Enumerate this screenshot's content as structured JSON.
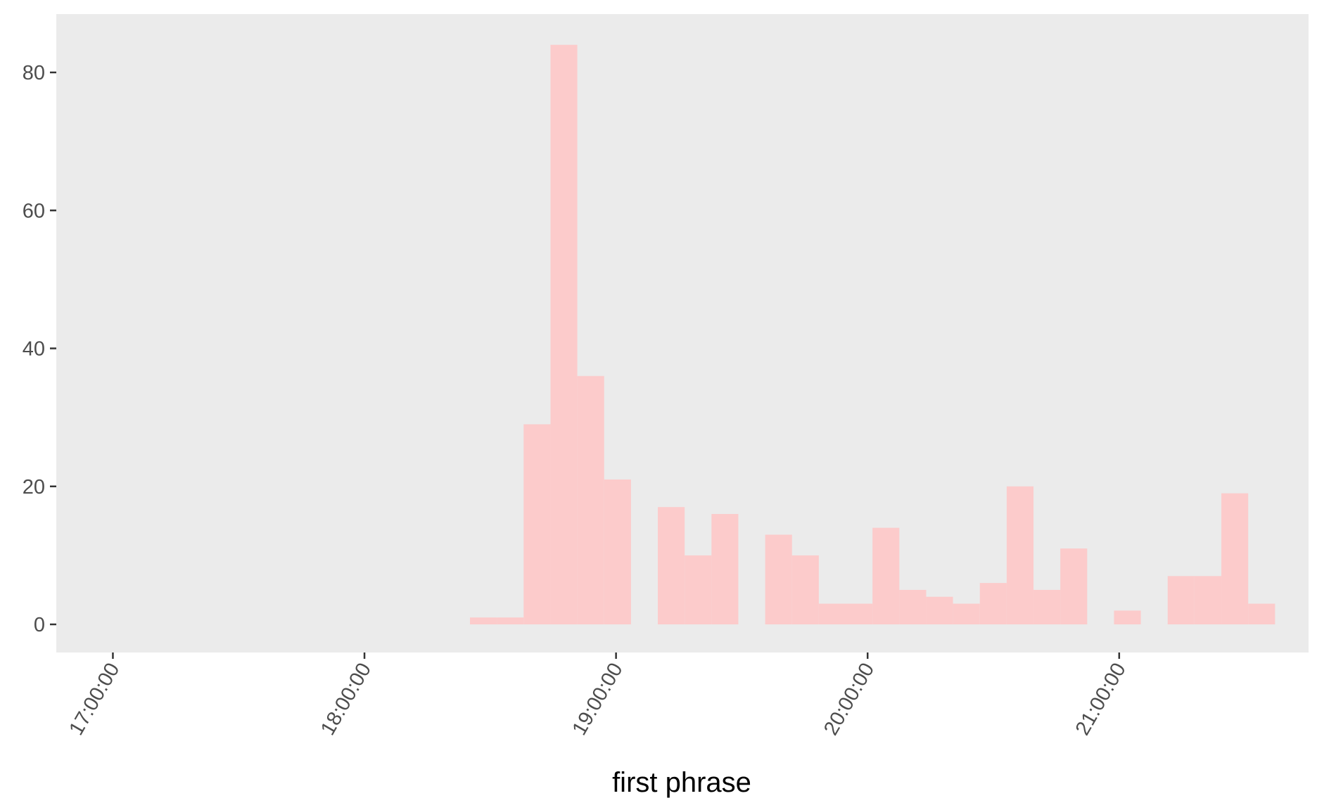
{
  "chart_data": {
    "type": "bar",
    "xlabel": "first phrase",
    "ylabel": "",
    "title": "",
    "x_ticks": [
      "17:00:00",
      "18:00:00",
      "19:00:00",
      "20:00:00",
      "21:00:00"
    ],
    "y_ticks": [
      "0",
      "20",
      "40",
      "60",
      "80"
    ],
    "ylim": [
      0,
      88
    ],
    "xlim": [
      "16:46:30",
      "21:45:10"
    ],
    "grid": false,
    "bin_width_minutes": 6.4,
    "bars": [
      {
        "start": "18:25:10",
        "end": "18:31:34",
        "count": 1
      },
      {
        "start": "18:31:34",
        "end": "18:37:58",
        "count": 1
      },
      {
        "start": "18:37:58",
        "end": "18:44:22",
        "count": 29
      },
      {
        "start": "18:44:22",
        "end": "18:50:46",
        "count": 84
      },
      {
        "start": "18:50:46",
        "end": "18:57:10",
        "count": 36
      },
      {
        "start": "18:57:10",
        "end": "19:03:34",
        "count": 21
      },
      {
        "start": "19:09:58",
        "end": "19:16:22",
        "count": 17
      },
      {
        "start": "19:16:22",
        "end": "19:22:46",
        "count": 10
      },
      {
        "start": "19:22:46",
        "end": "19:29:10",
        "count": 16
      },
      {
        "start": "19:35:34",
        "end": "19:41:58",
        "count": 13
      },
      {
        "start": "19:41:58",
        "end": "19:48:22",
        "count": 10
      },
      {
        "start": "19:48:22",
        "end": "19:54:46",
        "count": 3
      },
      {
        "start": "19:54:46",
        "end": "20:01:10",
        "count": 3
      },
      {
        "start": "20:01:10",
        "end": "20:07:34",
        "count": 14
      },
      {
        "start": "20:07:34",
        "end": "20:13:58",
        "count": 5
      },
      {
        "start": "20:13:58",
        "end": "20:20:22",
        "count": 4
      },
      {
        "start": "20:20:22",
        "end": "20:26:46",
        "count": 3
      },
      {
        "start": "20:26:46",
        "end": "20:33:10",
        "count": 6
      },
      {
        "start": "20:33:10",
        "end": "20:39:34",
        "count": 20
      },
      {
        "start": "20:39:34",
        "end": "20:45:58",
        "count": 5
      },
      {
        "start": "20:45:58",
        "end": "20:52:22",
        "count": 11
      },
      {
        "start": "20:58:46",
        "end": "21:05:10",
        "count": 2
      },
      {
        "start": "21:11:34",
        "end": "21:17:58",
        "count": 7
      },
      {
        "start": "21:17:58",
        "end": "21:24:22",
        "count": 7
      },
      {
        "start": "21:24:22",
        "end": "21:30:46",
        "count": 19
      },
      {
        "start": "21:30:46",
        "end": "21:37:10",
        "count": 3
      }
    ],
    "colors": {
      "panel_background": "#ebebeb",
      "bar_fill": "#fccbcb",
      "tick_mark": "#333333",
      "tick_label": "#4d4d4d"
    }
  }
}
